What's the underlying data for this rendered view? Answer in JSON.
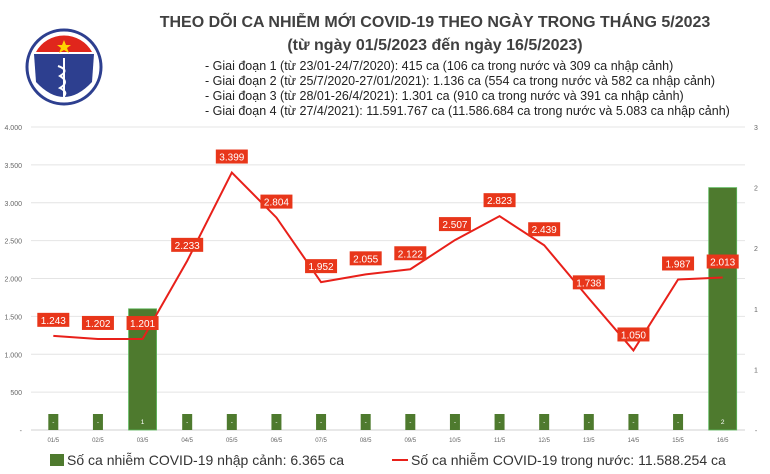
{
  "header": {
    "logo_text_top": "BỘ Y TẾ",
    "logo_text_bottom": "MINISTRY OF HEALTH",
    "title": "THEO DÕI CA NHIỄM MỚI COVID-19 THEO NGÀY TRONG THÁNG 5/2023",
    "subtitle": "(từ ngày 01/5/2023 đến ngày 16/5/2023)",
    "stages": [
      "- Giai đoạn 1 (từ 23/01-24/7/2020): 415 ca (106 ca trong nước và 309 ca nhập cảnh)",
      "- Giai đoạn 2 (từ 25/7/2020-27/01/2021): 1.136 ca (554 ca trong nước và 582 ca nhập cảnh)",
      "- Giai đoạn 3 (từ 28/01-26/4/2021): 1.301 ca (910 ca trong nước và 391 ca nhập cảnh)",
      "- Giai đoạn 4 (từ 27/4/2021): 11.591.767 ca (11.586.684 ca trong nước và 5.083 ca nhập cảnh)"
    ]
  },
  "chart_data": {
    "type": "bar+line",
    "categories": [
      "01/5",
      "02/5",
      "03/5",
      "04/5",
      "05/5",
      "06/5",
      "07/5",
      "08/5",
      "09/5",
      "10/5",
      "11/5",
      "12/5",
      "13/5",
      "14/5",
      "15/5",
      "16/5"
    ],
    "series": [
      {
        "name": "Số ca nhiễm COVID-19 nhập cảnh: 6.365 ca",
        "type": "bar",
        "axis": "right",
        "color": "#4e7a2e",
        "values": [
          0,
          0,
          1,
          0,
          0,
          0,
          0,
          0,
          0,
          0,
          0,
          0,
          0,
          0,
          0,
          2
        ],
        "labels": [
          "-",
          "-",
          "1",
          "-",
          "-",
          "-",
          "-",
          "-",
          "-",
          "-",
          "-",
          "-",
          "-",
          "-",
          "-",
          "2"
        ]
      },
      {
        "name": "Số ca nhiễm COVID-19 trong nước: 11.588.254 ca",
        "type": "line",
        "axis": "left",
        "color": "#e8201a",
        "values": [
          1243,
          1202,
          1201,
          2233,
          3399,
          2804,
          1952,
          2055,
          2122,
          2507,
          2823,
          2439,
          1738,
          1050,
          1987,
          2013
        ],
        "labels": [
          "1.243",
          "1.202",
          "1.201",
          "2.233",
          "3.399",
          "2.804",
          "1.952",
          "2.055",
          "2.122",
          "2.507",
          "2.823",
          "2.439",
          "1.738",
          "1.050",
          "1.987",
          "2.013"
        ]
      }
    ],
    "left_axis": {
      "ylim": [
        0,
        4000
      ],
      "ticks": [
        0,
        500,
        1000,
        1500,
        2000,
        2500,
        3000,
        3500,
        4000
      ],
      "tick_labels": [
        "-",
        "500",
        "1.000",
        "1.500",
        "2.000",
        "2.500",
        "3.000",
        "3.500",
        "4.000"
      ]
    },
    "right_axis": {
      "ylim": [
        0,
        2.5
      ],
      "ticks": [
        0,
        0.5,
        1,
        1.5,
        2,
        2.5
      ],
      "tick_labels": [
        "-",
        "1",
        "1",
        "2",
        "2",
        "3"
      ]
    },
    "grid": true,
    "legend": "bottom"
  }
}
